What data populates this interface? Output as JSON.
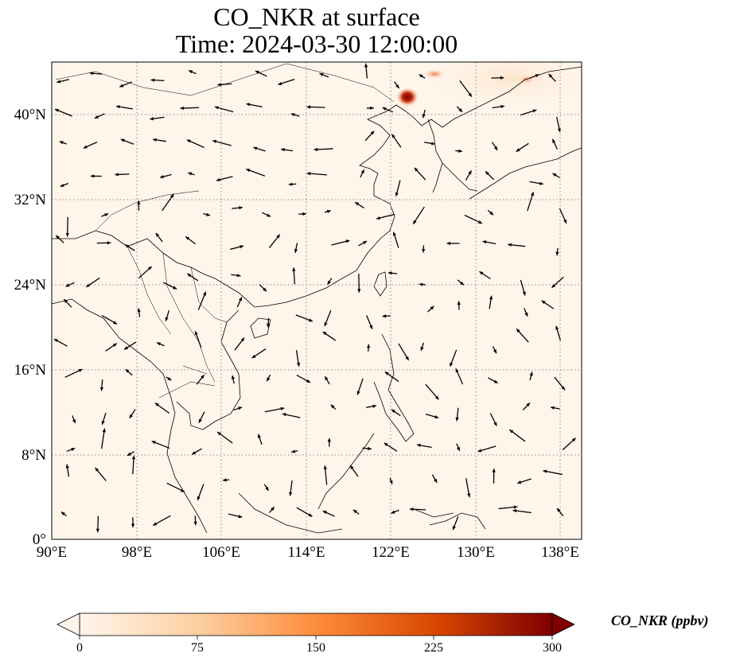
{
  "title": {
    "line1": "CO_NKR at surface",
    "line2": "Time: 2024-03-30 12:00:00"
  },
  "map": {
    "projection": "PlateCarree",
    "lon_range": [
      90,
      140
    ],
    "lat_range": [
      0,
      45
    ],
    "gridlines": true,
    "x_ticks": [
      "90°E",
      "98°E",
      "106°E",
      "114°E",
      "122°E",
      "130°E",
      "138°E"
    ],
    "y_ticks": [
      "0°",
      "8°N",
      "16°N",
      "24°N",
      "32°N",
      "40°N"
    ],
    "field": "CO_NKR",
    "background_color": "#fff5eb",
    "hotspots": [
      {
        "lon": 123.5,
        "lat": 41.8,
        "value": 300
      },
      {
        "lon": 126.0,
        "lat": 43.8,
        "value": 170
      },
      {
        "lon": 134.0,
        "lat": 43.5,
        "value": 55
      }
    ],
    "wind_vectors": true
  },
  "colorbar": {
    "label": "CO_NKR (ppbv)",
    "ticks": [
      "0",
      "75",
      "150",
      "225",
      "300"
    ],
    "min": 0,
    "max": 300,
    "extend": "both",
    "colormap": [
      "#fff5eb",
      "#fdd0a2",
      "#fd8d3c",
      "#d94801",
      "#7f0000"
    ]
  }
}
